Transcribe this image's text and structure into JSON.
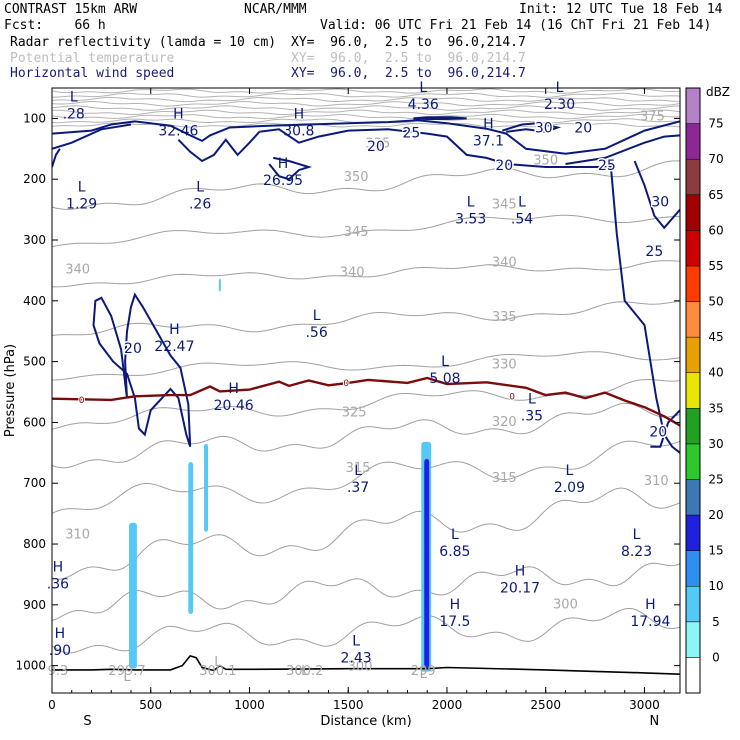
{
  "header": {
    "model": "CONTRAST 15km ARW",
    "org": "NCAR/MMM",
    "init": "Init: 12 UTC Tue 18 Feb 14",
    "fcst": "Fcst:    66 h",
    "valid": "Valid: 06 UTC Fri 21 Feb 14 (16 ChT Fri 21 Feb 14)",
    "field1": "Radar reflectivity (lamda = 10 cm)",
    "field1_xy": "XY=  96.0,  2.5 to  96.0,214.7",
    "field2": "Potential temperature",
    "field2_xy": "XY=  96.0,  2.5 to  96.0,214.7",
    "field3": "Horizontal wind speed",
    "field3_xy": "XY=  96.0,  2.5 to  96.0,214.7"
  },
  "chart_data": {
    "type": "cross-section",
    "xlabel": "Distance (km)",
    "ylabel": "Pressure (hPa)",
    "xlim": [
      0,
      3180
    ],
    "ylim": [
      1045,
      50
    ],
    "x_ticks": [
      0,
      500,
      1000,
      1500,
      2000,
      2500,
      3000
    ],
    "y_ticks": [
      100,
      200,
      300,
      400,
      500,
      600,
      700,
      800,
      900,
      1000
    ],
    "endpoints": {
      "left": "S",
      "right": "N"
    },
    "colorbar": {
      "unit": "dBZ",
      "levels": [
        0,
        5,
        10,
        15,
        20,
        25,
        30,
        35,
        40,
        45,
        50,
        55,
        60,
        65,
        70,
        75
      ],
      "colors": [
        "#ffffff",
        "#8cf5f5",
        "#56c8f5",
        "#2f8ff0",
        "#2020e0",
        "#3c78b4",
        "#2dc82d",
        "#22a022",
        "#e6e600",
        "#e6a000",
        "#ff8c3c",
        "#ff3c00",
        "#cc0000",
        "#a00000",
        "#8c3c3c",
        "#8c2896",
        "#b482c8"
      ]
    },
    "theta_labels": [
      {
        "text": "375",
        "x": 3040,
        "p": 95
      },
      {
        "text": "350",
        "x": 2500,
        "p": 168
      },
      {
        "text": "335",
        "x": 1650,
        "p": 140
      },
      {
        "text": "350",
        "x": 1540,
        "p": 195
      },
      {
        "text": "345",
        "x": 2290,
        "p": 240
      },
      {
        "text": "345",
        "x": 1540,
        "p": 285
      },
      {
        "text": "340",
        "x": 130,
        "p": 347
      },
      {
        "text": "340",
        "x": 1520,
        "p": 352
      },
      {
        "text": "340",
        "x": 2290,
        "p": 335
      },
      {
        "text": "335",
        "x": 2290,
        "p": 425
      },
      {
        "text": "330",
        "x": 2290,
        "p": 503
      },
      {
        "text": "325",
        "x": 1530,
        "p": 582
      },
      {
        "text": "320",
        "x": 2290,
        "p": 598
      },
      {
        "text": "315",
        "x": 1550,
        "p": 673
      },
      {
        "text": "315",
        "x": 2290,
        "p": 690
      },
      {
        "text": "310",
        "x": 3060,
        "p": 695
      },
      {
        "text": "310",
        "x": 130,
        "p": 783
      },
      {
        "text": "300",
        "x": 2600,
        "p": 898
      },
      {
        "text": "300",
        "x": 1560,
        "p": 1000
      }
    ],
    "wind_labels": [
      {
        "text": "25",
        "x": 1820,
        "p": 123
      },
      {
        "text": "20",
        "x": 1640,
        "p": 145
      },
      {
        "text": "30",
        "x": 2490,
        "p": 115
      },
      {
        "text": "20",
        "x": 2690,
        "p": 115
      },
      {
        "text": "20",
        "x": 2290,
        "p": 177
      },
      {
        "text": "25",
        "x": 2810,
        "p": 177
      },
      {
        "text": "30",
        "x": 3080,
        "p": 237
      },
      {
        "text": "25",
        "x": 3050,
        "p": 318
      },
      {
        "text": "20",
        "x": 410,
        "p": 478
      },
      {
        "text": "20",
        "x": 3070,
        "p": 615
      }
    ],
    "zero_labels": [
      {
        "text": "0",
        "x": 150,
        "p": 563
      },
      {
        "text": "0",
        "x": 1490,
        "p": 535
      },
      {
        "text": "0",
        "x": 2330,
        "p": 557
      }
    ],
    "pressure_centers": [
      {
        "letter": "L",
        "value": ".28",
        "x": 110,
        "p": 85
      },
      {
        "letter": "L",
        "value": "4.36",
        "x": 1880,
        "p": 70
      },
      {
        "letter": "L",
        "value": "2.30",
        "x": 2570,
        "p": 70
      },
      {
        "letter": "H",
        "value": "32.46",
        "x": 640,
        "p": 113
      },
      {
        "letter": "H",
        "value": "30.8",
        "x": 1250,
        "p": 113
      },
      {
        "letter": "H",
        "value": "37.1",
        "x": 2210,
        "p": 130
      },
      {
        "letter": "H",
        "value": "26.95",
        "x": 1170,
        "p": 195
      },
      {
        "letter": "L",
        "value": "1.29",
        "x": 150,
        "p": 233
      },
      {
        "letter": "L",
        "value": ".26",
        "x": 750,
        "p": 233
      },
      {
        "letter": "L",
        "value": "3.53",
        "x": 2120,
        "p": 258
      },
      {
        "letter": "L",
        "value": ".54",
        "x": 2380,
        "p": 258
      },
      {
        "letter": "L",
        "value": ".56",
        "x": 1340,
        "p": 445
      },
      {
        "letter": "H",
        "value": "22.47",
        "x": 620,
        "p": 468
      },
      {
        "letter": "L",
        "value": "5.08",
        "x": 1990,
        "p": 520
      },
      {
        "letter": "H",
        "value": "20.46",
        "x": 920,
        "p": 565
      },
      {
        "letter": "L",
        "value": ".35",
        "x": 2430,
        "p": 582
      },
      {
        "letter": "L",
        "value": ".37",
        "x": 1550,
        "p": 700
      },
      {
        "letter": "L",
        "value": "2.09",
        "x": 2620,
        "p": 700
      },
      {
        "letter": "L",
        "value": "6.85",
        "x": 2040,
        "p": 805
      },
      {
        "letter": "L",
        "value": "8.23",
        "x": 2960,
        "p": 805
      },
      {
        "letter": "H",
        "value": "20.17",
        "x": 2370,
        "p": 865
      },
      {
        "letter": "H",
        "value": "17.5",
        "x": 2040,
        "p": 920
      },
      {
        "letter": "H",
        "value": "17.94",
        "x": 3030,
        "p": 920
      },
      {
        "letter": "L",
        "value": "2.43",
        "x": 1540,
        "p": 980
      },
      {
        "letter": "H",
        "value": ".36",
        "x": 30,
        "p": 858
      },
      {
        "letter": "H",
        "value": ".90",
        "x": 40,
        "p": 968
      }
    ],
    "theta_surface_labels": [
      {
        "letter": "L",
        "value": "299.7",
        "x": 380,
        "p": 1055
      },
      {
        "letter": "L",
        "value": "300.1",
        "x": 840,
        "p": 1030
      },
      {
        "letter": "L",
        "value": "300.2",
        "x": 1280,
        "p": 1045
      },
      {
        "letter": "L",
        "value": "299",
        "x": 1880,
        "p": 1050
      },
      {
        "letter": "",
        "value": "9.3",
        "x": 30,
        "p": 1058
      }
    ],
    "reflectivity_cells": [
      {
        "x": [
          390,
          430
        ],
        "p": [
          765,
          1005
        ],
        "dbz": 7
      },
      {
        "x": [
          690,
          715
        ],
        "p": [
          665,
          915
        ],
        "dbz": 7
      },
      {
        "x": [
          770,
          790
        ],
        "p": [
          635,
          780
        ],
        "dbz": 7
      },
      {
        "x": [
          845,
          855
        ],
        "p": [
          363,
          385
        ],
        "dbz": 7
      },
      {
        "x": [
          1870,
          1920
        ],
        "p": [
          632,
          1010
        ],
        "dbz": 8
      },
      {
        "x": [
          1885,
          1910
        ],
        "p": [
          660,
          1005
        ],
        "dbz": 17
      }
    ],
    "surface_pressure": [
      [
        0,
        1007
      ],
      [
        200,
        1007
      ],
      [
        300,
        1006
      ],
      [
        420,
        1007
      ],
      [
        600,
        1007
      ],
      [
        660,
        1000
      ],
      [
        700,
        984
      ],
      [
        730,
        987
      ],
      [
        760,
        1003
      ],
      [
        820,
        1008
      ],
      [
        850,
        1000
      ],
      [
        880,
        1006
      ],
      [
        1000,
        1006
      ],
      [
        1500,
        1005
      ],
      [
        1900,
        1005
      ],
      [
        2000,
        1003
      ],
      [
        2500,
        1007
      ],
      [
        3000,
        1012
      ],
      [
        3180,
        1014
      ]
    ],
    "freezing_level": [
      [
        0,
        561
      ],
      [
        300,
        563
      ],
      [
        420,
        557
      ],
      [
        600,
        555
      ],
      [
        700,
        555
      ],
      [
        800,
        541
      ],
      [
        850,
        549
      ],
      [
        1000,
        546
      ],
      [
        1150,
        533
      ],
      [
        1200,
        540
      ],
      [
        1300,
        531
      ],
      [
        1400,
        539
      ],
      [
        1500,
        535
      ],
      [
        1600,
        530
      ],
      [
        1800,
        535
      ],
      [
        1900,
        527
      ],
      [
        2000,
        537
      ],
      [
        2200,
        534
      ],
      [
        2400,
        543
      ],
      [
        2500,
        555
      ],
      [
        2600,
        551
      ],
      [
        2700,
        560
      ],
      [
        2800,
        551
      ],
      [
        2900,
        564
      ],
      [
        3000,
        575
      ],
      [
        3100,
        590
      ],
      [
        3180,
        605
      ]
    ]
  }
}
